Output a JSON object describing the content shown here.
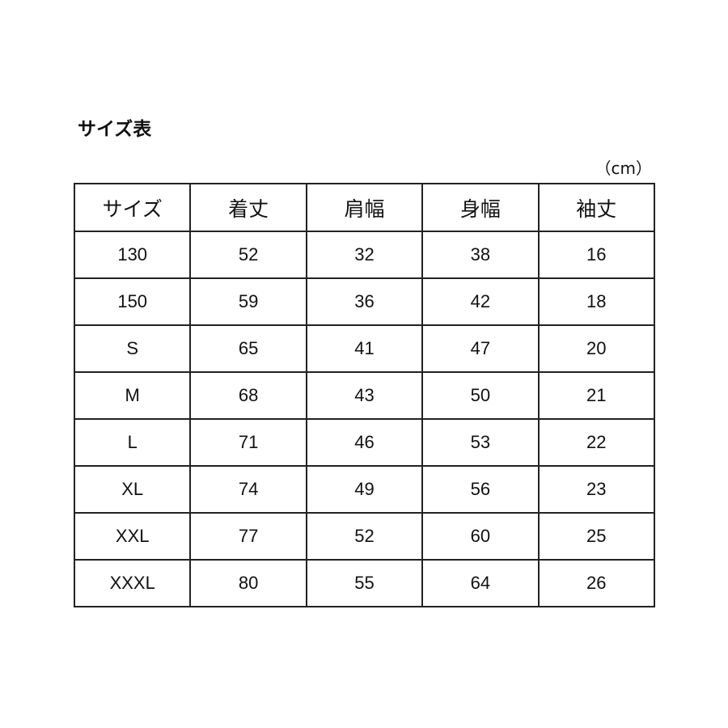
{
  "title": "サイズ表",
  "unit": "（cm）",
  "table": {
    "headers": [
      "サイズ",
      "着丈",
      "肩幅",
      "身幅",
      "袖丈"
    ],
    "rows": [
      [
        "130",
        "52",
        "32",
        "38",
        "16"
      ],
      [
        "150",
        "59",
        "36",
        "42",
        "18"
      ],
      [
        "S",
        "65",
        "41",
        "47",
        "20"
      ],
      [
        "M",
        "68",
        "43",
        "50",
        "21"
      ],
      [
        "L",
        "71",
        "46",
        "53",
        "22"
      ],
      [
        "XL",
        "74",
        "49",
        "56",
        "23"
      ],
      [
        "XXL",
        "77",
        "52",
        "60",
        "25"
      ],
      [
        "XXXL",
        "80",
        "55",
        "64",
        "26"
      ]
    ]
  }
}
